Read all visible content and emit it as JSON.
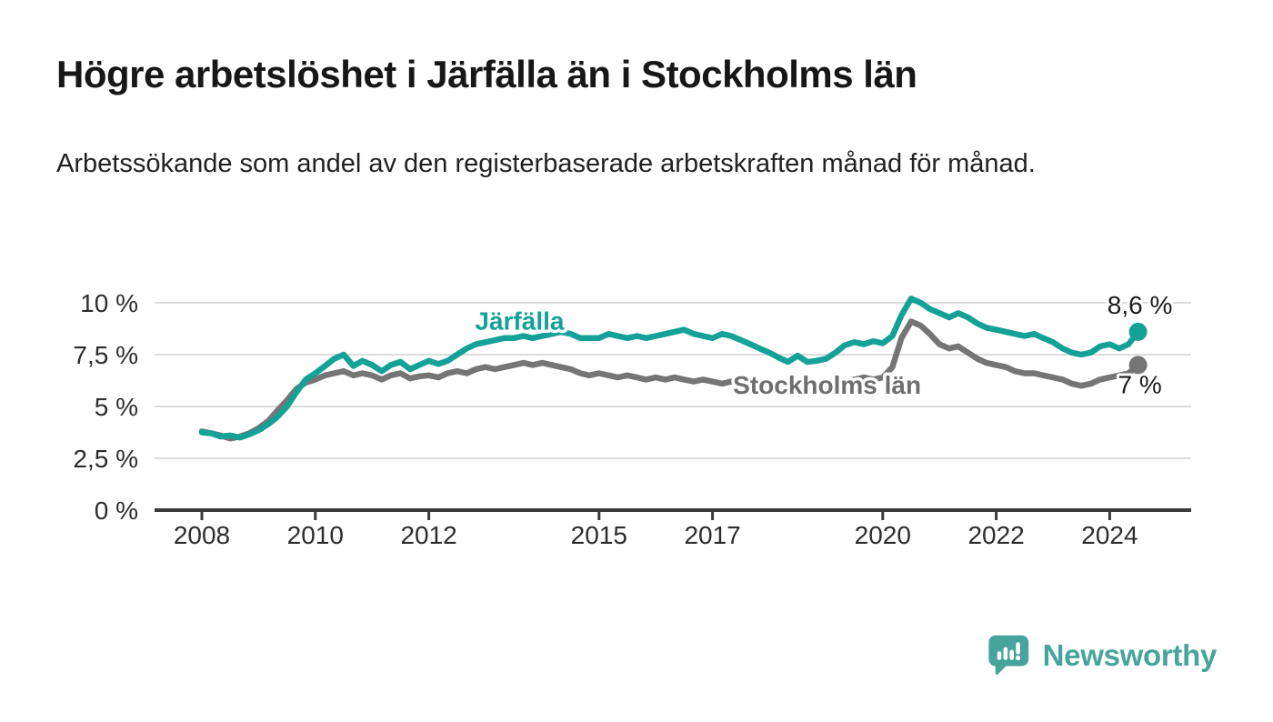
{
  "header": {
    "title": "Högre arbetslöshet i Järfälla än i Stockholms län",
    "subtitle": "Arbetssökande som andel av den registerbaserade arbetskraften månad för månad."
  },
  "footer": {
    "brand": "Newsworthy",
    "brand_color": "#46a49d"
  },
  "colors": {
    "jarfalla_line": "#14a197",
    "stockholm_line": "#757575",
    "gridline": "#dcdcdc",
    "axis": "#3a3a3a",
    "tick_text": "#2d2d2d",
    "end_label_text": "#1c1c1c"
  },
  "chart_data": {
    "type": "line",
    "title": "Högre arbetslöshet i Järfälla än i Stockholms län",
    "subtitle": "Arbetssökande som andel av den registerbaserade arbetskraften månad för månad.",
    "unit": "%",
    "grid": true,
    "legend_position": "inline-labels",
    "x_axis": {
      "range": [
        2007.15,
        2025.45
      ],
      "ticks": [
        {
          "t": 2008,
          "label": "2008"
        },
        {
          "t": 2010,
          "label": "2010"
        },
        {
          "t": 2012,
          "label": "2012"
        },
        {
          "t": 2015,
          "label": "2015"
        },
        {
          "t": 2017,
          "label": "2017"
        },
        {
          "t": 2020,
          "label": "2020"
        },
        {
          "t": 2022,
          "label": "2022"
        },
        {
          "t": 2024,
          "label": "2024"
        }
      ]
    },
    "y_axis": {
      "range": [
        0,
        10.5
      ],
      "ticks": [
        {
          "v": 0,
          "label": "0 %"
        },
        {
          "v": 2.5,
          "label": "2,5 %"
        },
        {
          "v": 5,
          "label": "5 %"
        },
        {
          "v": 7.5,
          "label": "7,5 %"
        },
        {
          "v": 10,
          "label": "10 %"
        }
      ]
    },
    "series": [
      {
        "name": "Stockholms län",
        "color": "#757575",
        "label_color": "#6e6e6e",
        "end_label": "7 %",
        "last_value": 7.0,
        "end_label_side": "below",
        "label_pos": [
          2019.02,
          6.05
        ],
        "points": [
          [
            2008.0,
            3.8
          ],
          [
            2008.17,
            3.7
          ],
          [
            2008.33,
            3.6
          ],
          [
            2008.5,
            3.45
          ],
          [
            2008.67,
            3.55
          ],
          [
            2008.83,
            3.7
          ],
          [
            2009.0,
            3.95
          ],
          [
            2009.17,
            4.3
          ],
          [
            2009.33,
            4.8
          ],
          [
            2009.5,
            5.3
          ],
          [
            2009.67,
            5.85
          ],
          [
            2009.83,
            6.15
          ],
          [
            2010.0,
            6.3
          ],
          [
            2010.17,
            6.5
          ],
          [
            2010.33,
            6.6
          ],
          [
            2010.5,
            6.7
          ],
          [
            2010.67,
            6.5
          ],
          [
            2010.83,
            6.6
          ],
          [
            2011.0,
            6.5
          ],
          [
            2011.17,
            6.3
          ],
          [
            2011.33,
            6.5
          ],
          [
            2011.5,
            6.6
          ],
          [
            2011.67,
            6.35
          ],
          [
            2011.83,
            6.45
          ],
          [
            2012.0,
            6.5
          ],
          [
            2012.17,
            6.4
          ],
          [
            2012.33,
            6.6
          ],
          [
            2012.5,
            6.7
          ],
          [
            2012.67,
            6.6
          ],
          [
            2012.83,
            6.8
          ],
          [
            2013.0,
            6.9
          ],
          [
            2013.17,
            6.8
          ],
          [
            2013.33,
            6.9
          ],
          [
            2013.5,
            7.0
          ],
          [
            2013.67,
            7.1
          ],
          [
            2013.83,
            7.0
          ],
          [
            2014.0,
            7.1
          ],
          [
            2014.17,
            7.0
          ],
          [
            2014.33,
            6.9
          ],
          [
            2014.5,
            6.8
          ],
          [
            2014.67,
            6.6
          ],
          [
            2014.83,
            6.5
          ],
          [
            2015.0,
            6.6
          ],
          [
            2015.17,
            6.5
          ],
          [
            2015.33,
            6.4
          ],
          [
            2015.5,
            6.5
          ],
          [
            2015.67,
            6.4
          ],
          [
            2015.83,
            6.3
          ],
          [
            2016.0,
            6.4
          ],
          [
            2016.17,
            6.3
          ],
          [
            2016.33,
            6.4
          ],
          [
            2016.5,
            6.3
          ],
          [
            2016.67,
            6.2
          ],
          [
            2016.83,
            6.3
          ],
          [
            2017.0,
            6.2
          ],
          [
            2017.17,
            6.1
          ],
          [
            2017.33,
            6.2
          ],
          [
            2017.5,
            6.1
          ],
          [
            2017.67,
            6.0
          ],
          [
            2017.83,
            6.1
          ],
          [
            2018.0,
            6.0
          ],
          [
            2018.17,
            6.1
          ],
          [
            2018.33,
            6.2
          ],
          [
            2018.5,
            6.1
          ],
          [
            2018.67,
            6.2
          ],
          [
            2018.83,
            6.1
          ],
          [
            2019.0,
            6.0
          ],
          [
            2019.17,
            6.1
          ],
          [
            2019.33,
            6.2
          ],
          [
            2019.5,
            6.3
          ],
          [
            2019.67,
            6.4
          ],
          [
            2019.83,
            6.3
          ],
          [
            2020.0,
            6.4
          ],
          [
            2020.17,
            6.9
          ],
          [
            2020.33,
            8.3
          ],
          [
            2020.5,
            9.1
          ],
          [
            2020.67,
            8.9
          ],
          [
            2020.83,
            8.5
          ],
          [
            2021.0,
            8.0
          ],
          [
            2021.17,
            7.8
          ],
          [
            2021.33,
            7.9
          ],
          [
            2021.5,
            7.6
          ],
          [
            2021.67,
            7.3
          ],
          [
            2021.83,
            7.1
          ],
          [
            2022.0,
            7.0
          ],
          [
            2022.17,
            6.9
          ],
          [
            2022.33,
            6.7
          ],
          [
            2022.5,
            6.6
          ],
          [
            2022.67,
            6.6
          ],
          [
            2022.83,
            6.5
          ],
          [
            2023.0,
            6.4
          ],
          [
            2023.17,
            6.3
          ],
          [
            2023.33,
            6.1
          ],
          [
            2023.5,
            6.0
          ],
          [
            2023.67,
            6.1
          ],
          [
            2023.83,
            6.3
          ],
          [
            2024.0,
            6.4
          ],
          [
            2024.17,
            6.5
          ],
          [
            2024.33,
            6.6
          ],
          [
            2024.5,
            7.0
          ]
        ]
      },
      {
        "name": "Järfälla",
        "color": "#14a197",
        "label_color": "#14a197",
        "end_label": "8,6 %",
        "last_value": 8.6,
        "end_label_side": "above",
        "label_pos": [
          2013.6,
          9.15
        ],
        "points": [
          [
            2008.0,
            3.75
          ],
          [
            2008.17,
            3.7
          ],
          [
            2008.33,
            3.55
          ],
          [
            2008.5,
            3.6
          ],
          [
            2008.67,
            3.5
          ],
          [
            2008.83,
            3.65
          ],
          [
            2009.0,
            3.85
          ],
          [
            2009.17,
            4.15
          ],
          [
            2009.33,
            4.5
          ],
          [
            2009.5,
            5.0
          ],
          [
            2009.67,
            5.7
          ],
          [
            2009.83,
            6.3
          ],
          [
            2010.0,
            6.6
          ],
          [
            2010.17,
            6.95
          ],
          [
            2010.33,
            7.3
          ],
          [
            2010.5,
            7.5
          ],
          [
            2010.67,
            6.95
          ],
          [
            2010.83,
            7.2
          ],
          [
            2011.0,
            7.0
          ],
          [
            2011.17,
            6.7
          ],
          [
            2011.33,
            7.0
          ],
          [
            2011.5,
            7.15
          ],
          [
            2011.67,
            6.8
          ],
          [
            2011.83,
            7.0
          ],
          [
            2012.0,
            7.2
          ],
          [
            2012.17,
            7.05
          ],
          [
            2012.33,
            7.2
          ],
          [
            2012.5,
            7.5
          ],
          [
            2012.67,
            7.8
          ],
          [
            2012.83,
            8.0
          ],
          [
            2013.0,
            8.1
          ],
          [
            2013.17,
            8.2
          ],
          [
            2013.33,
            8.3
          ],
          [
            2013.5,
            8.3
          ],
          [
            2013.67,
            8.4
          ],
          [
            2013.83,
            8.3
          ],
          [
            2014.0,
            8.4
          ],
          [
            2014.17,
            8.5
          ],
          [
            2014.33,
            8.6
          ],
          [
            2014.5,
            8.5
          ],
          [
            2014.67,
            8.3
          ],
          [
            2014.83,
            8.3
          ],
          [
            2015.0,
            8.3
          ],
          [
            2015.17,
            8.5
          ],
          [
            2015.33,
            8.4
          ],
          [
            2015.5,
            8.3
          ],
          [
            2015.67,
            8.4
          ],
          [
            2015.83,
            8.3
          ],
          [
            2016.0,
            8.4
          ],
          [
            2016.17,
            8.5
          ],
          [
            2016.33,
            8.6
          ],
          [
            2016.5,
            8.7
          ],
          [
            2016.67,
            8.5
          ],
          [
            2016.83,
            8.4
          ],
          [
            2017.0,
            8.3
          ],
          [
            2017.17,
            8.5
          ],
          [
            2017.33,
            8.4
          ],
          [
            2017.5,
            8.2
          ],
          [
            2017.67,
            8.0
          ],
          [
            2017.83,
            7.8
          ],
          [
            2018.0,
            7.6
          ],
          [
            2018.17,
            7.35
          ],
          [
            2018.33,
            7.15
          ],
          [
            2018.5,
            7.45
          ],
          [
            2018.67,
            7.15
          ],
          [
            2018.83,
            7.2
          ],
          [
            2019.0,
            7.3
          ],
          [
            2019.17,
            7.6
          ],
          [
            2019.33,
            7.95
          ],
          [
            2019.5,
            8.1
          ],
          [
            2019.67,
            8.0
          ],
          [
            2019.83,
            8.15
          ],
          [
            2020.0,
            8.05
          ],
          [
            2020.17,
            8.4
          ],
          [
            2020.33,
            9.4
          ],
          [
            2020.5,
            10.2
          ],
          [
            2020.67,
            10.0
          ],
          [
            2020.83,
            9.7
          ],
          [
            2021.0,
            9.5
          ],
          [
            2021.17,
            9.3
          ],
          [
            2021.33,
            9.5
          ],
          [
            2021.5,
            9.3
          ],
          [
            2021.67,
            9.0
          ],
          [
            2021.83,
            8.8
          ],
          [
            2022.0,
            8.7
          ],
          [
            2022.17,
            8.6
          ],
          [
            2022.33,
            8.5
          ],
          [
            2022.5,
            8.4
          ],
          [
            2022.67,
            8.5
          ],
          [
            2022.83,
            8.3
          ],
          [
            2023.0,
            8.1
          ],
          [
            2023.17,
            7.8
          ],
          [
            2023.33,
            7.6
          ],
          [
            2023.5,
            7.5
          ],
          [
            2023.67,
            7.6
          ],
          [
            2023.83,
            7.9
          ],
          [
            2024.0,
            8.0
          ],
          [
            2024.17,
            7.8
          ],
          [
            2024.33,
            8.0
          ],
          [
            2024.5,
            8.6
          ]
        ]
      }
    ]
  }
}
